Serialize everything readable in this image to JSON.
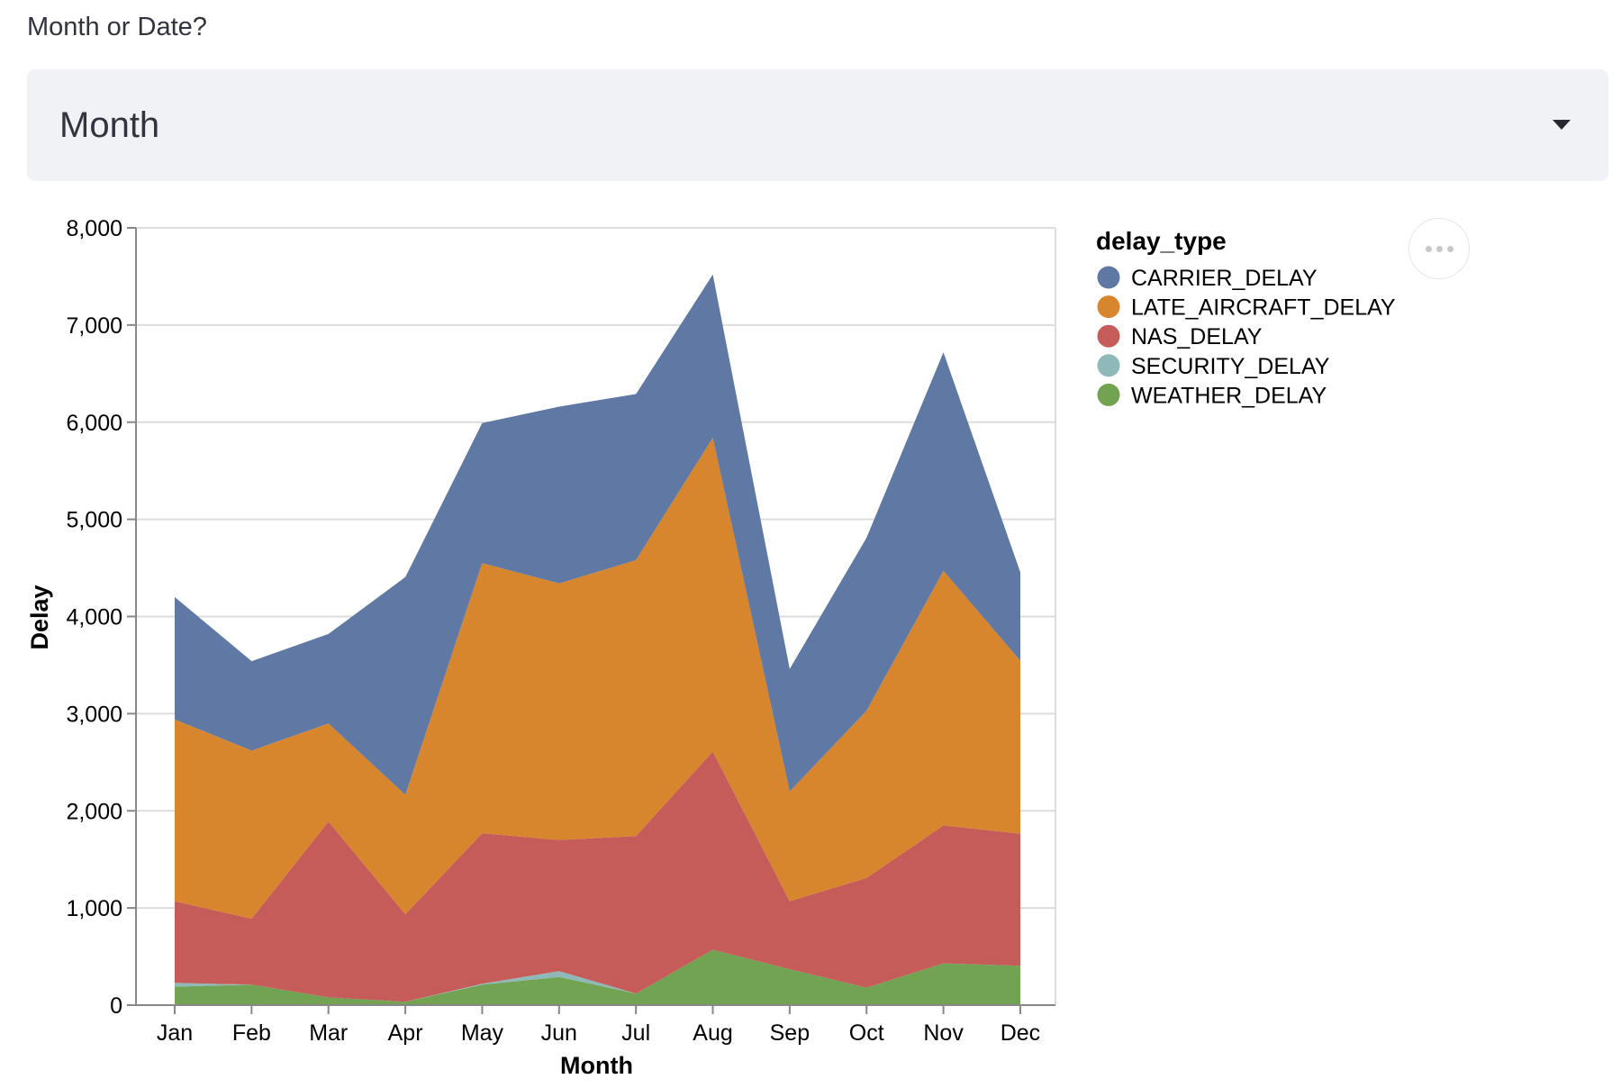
{
  "select": {
    "label": "Month or Date?",
    "value": "Month"
  },
  "chart_data": {
    "type": "area",
    "stacked": true,
    "xlabel": "Month",
    "ylabel": "Delay",
    "ylim": [
      0,
      8000
    ],
    "yticks": [
      0,
      1000,
      2000,
      3000,
      4000,
      5000,
      6000,
      7000,
      8000
    ],
    "ytick_labels": [
      "0",
      "1,000",
      "2,000",
      "3,000",
      "4,000",
      "5,000",
      "6,000",
      "7,000",
      "8,000"
    ],
    "categories": [
      "Jan",
      "Feb",
      "Mar",
      "Apr",
      "May",
      "Jun",
      "Jul",
      "Aug",
      "Sep",
      "Oct",
      "Nov",
      "Dec"
    ],
    "grid": true,
    "legend_title": "delay_type",
    "legend_position": "right",
    "series": [
      {
        "name": "WEATHER_DELAY",
        "color": "#72a352",
        "values": [
          190,
          210,
          80,
          35,
          210,
          290,
          120,
          570,
          370,
          180,
          430,
          405
        ]
      },
      {
        "name": "SECURITY_DELAY",
        "color": "#8eb9b8",
        "values": [
          40,
          0,
          0,
          0,
          10,
          60,
          0,
          0,
          0,
          0,
          0,
          0
        ]
      },
      {
        "name": "NAS_DELAY",
        "color": "#c55c5a",
        "values": [
          840,
          680,
          1810,
          900,
          1550,
          1350,
          1620,
          2040,
          700,
          1130,
          1420,
          1360
        ]
      },
      {
        "name": "LATE_AIRCRAFT_DELAY",
        "color": "#d8862e",
        "values": [
          1870,
          1730,
          1010,
          1230,
          2780,
          2640,
          2840,
          3230,
          1130,
          1720,
          2620,
          1780
        ]
      },
      {
        "name": "CARRIER_DELAY",
        "color": "#5f78a4",
        "values": [
          1260,
          920,
          920,
          2240,
          1440,
          1820,
          1710,
          1680,
          1260,
          1780,
          2250,
          910
        ]
      }
    ],
    "legend_order": [
      "CARRIER_DELAY",
      "LATE_AIRCRAFT_DELAY",
      "NAS_DELAY",
      "SECURITY_DELAY",
      "WEATHER_DELAY"
    ]
  }
}
